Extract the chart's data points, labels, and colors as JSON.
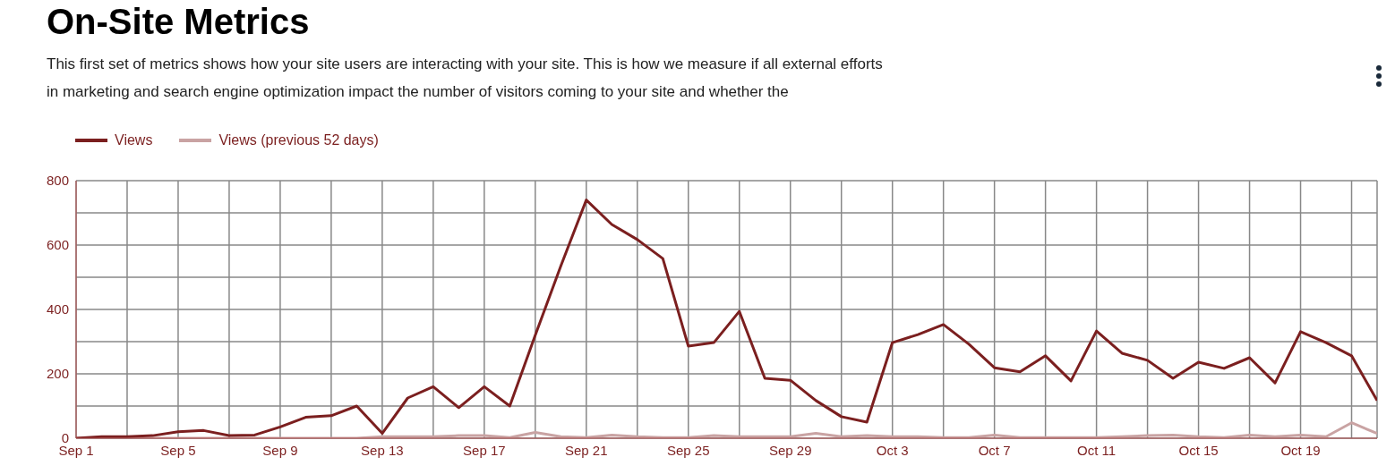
{
  "chart_data": {
    "type": "line",
    "title": "On-Site Metrics",
    "subtitle": "This first set of metrics shows how your site users are interacting with your site. This is how we measure if all external efforts in marketing and search engine optimization impact the number of visitors coming to your site and whether the",
    "x": [
      "--09-01",
      "--09-02",
      "--09-03",
      "--09-04",
      "--09-05",
      "--09-06",
      "--09-07",
      "--09-08",
      "--09-09",
      "--09-10",
      "--09-11",
      "--09-12",
      "--09-13",
      "--09-14",
      "--09-15",
      "--09-16",
      "--09-17",
      "--09-18",
      "--09-19",
      "--09-20",
      "--09-21",
      "--09-22",
      "--09-23",
      "--09-24",
      "--09-25",
      "--09-26",
      "--09-27",
      "--09-28",
      "--09-29",
      "--09-30",
      "--10-01",
      "--10-02",
      "--10-03",
      "--10-04",
      "--10-05",
      "--10-06",
      "--10-07",
      "--10-08",
      "--10-09",
      "--10-10",
      "--10-11",
      "--10-12",
      "--10-13",
      "--10-14",
      "--10-15",
      "--10-16",
      "--10-17",
      "--10-18",
      "--10-19",
      "--10-20",
      "--10-21",
      "--10-22"
    ],
    "series": [
      {
        "name": "Views",
        "color": "#7b1f1f",
        "values": [
          0,
          5,
          5,
          8,
          20,
          24,
          8,
          10,
          35,
          65,
          70,
          100,
          15,
          125,
          160,
          95,
          160,
          100,
          320,
          535,
          740,
          664,
          617,
          558,
          286,
          297,
          394,
          186,
          180,
          117,
          67,
          50,
          297,
          322,
          353,
          292,
          219,
          206,
          256,
          178,
          333,
          264,
          242,
          186,
          236,
          217,
          250,
          172,
          331,
          297,
          256,
          117
        ]
      },
      {
        "name": "Views (previous 52 days)",
        "color": "#c9a3a3",
        "values": [
          0,
          0,
          0,
          0,
          0,
          0,
          0,
          0,
          0,
          0,
          0,
          0,
          5,
          5,
          5,
          8,
          8,
          2,
          18,
          5,
          2,
          10,
          5,
          2,
          2,
          8,
          5,
          5,
          5,
          15,
          5,
          8,
          5,
          5,
          2,
          2,
          10,
          2,
          2,
          2,
          2,
          5,
          8,
          10,
          5,
          2,
          10,
          5,
          10,
          5,
          48,
          15
        ]
      }
    ],
    "xlim": [
      "--09-01",
      "--10-22"
    ],
    "xticks": [
      {
        "value": "--09-01",
        "label": "Sep 1"
      },
      {
        "value": "--09-03",
        "label": null
      },
      {
        "value": "--09-05",
        "label": "Sep 5"
      },
      {
        "value": "--09-07",
        "label": null
      },
      {
        "value": "--09-09",
        "label": "Sep 9"
      },
      {
        "value": "--09-11",
        "label": null
      },
      {
        "value": "--09-13",
        "label": "Sep 13"
      },
      {
        "value": "--09-15",
        "label": null
      },
      {
        "value": "--09-17",
        "label": "Sep 17"
      },
      {
        "value": "--09-19",
        "label": null
      },
      {
        "value": "--09-21",
        "label": "Sep 21"
      },
      {
        "value": "--09-23",
        "label": null
      },
      {
        "value": "--09-25",
        "label": "Sep 25"
      },
      {
        "value": "--09-27",
        "label": null
      },
      {
        "value": "--09-29",
        "label": "Sep 29"
      },
      {
        "value": "--10-01",
        "label": null
      },
      {
        "value": "--10-03",
        "label": "Oct 3"
      },
      {
        "value": "--10-05",
        "label": null
      },
      {
        "value": "--10-07",
        "label": "Oct 7"
      },
      {
        "value": "--10-09",
        "label": null
      },
      {
        "value": "--10-11",
        "label": "Oct 11"
      },
      {
        "value": "--10-13",
        "label": null
      },
      {
        "value": "--10-15",
        "label": "Oct 15"
      },
      {
        "value": "--10-17",
        "label": null
      },
      {
        "value": "--10-19",
        "label": "Oct 19"
      },
      {
        "value": "--10-21",
        "label": null
      }
    ],
    "ylim": [
      0,
      800
    ],
    "yticks": [
      0,
      {
        "value": 100,
        "label": null
      },
      200,
      {
        "value": 300,
        "label": null
      },
      400,
      {
        "value": 500,
        "label": null
      },
      600,
      {
        "value": 700,
        "label": null
      },
      800
    ],
    "grid": true,
    "legend": "top left",
    "marker": "none",
    "line_style": "solid"
  }
}
